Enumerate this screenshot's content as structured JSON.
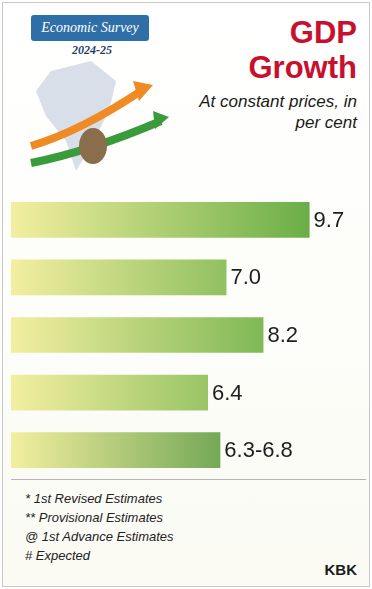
{
  "chart_data": {
    "type": "bar",
    "orientation": "horizontal",
    "title": "GDP Growth",
    "subtitle": "At constant prices, in per cent",
    "categories": [
      null,
      null,
      null,
      null,
      null
    ],
    "values": [
      9.7,
      7.0,
      8.2,
      6.4,
      6.8
    ],
    "value_labels": [
      "9.7",
      "7.0",
      "8.2",
      "6.4",
      "6.3-6.8"
    ],
    "colors": [
      "#6aae48",
      "#6aae48",
      "#6aae48",
      "#6aae48",
      "#3d8a36"
    ],
    "xlim": [
      0,
      11.5
    ],
    "grid": false,
    "tick_labels": false,
    "data_labels": true,
    "annotations": [
      "Economic Survey",
      "2024-25",
      "* 1st Revised Estimates",
      "** Provisional Estimates",
      "@ 1st Advance Estimates",
      "# Expected",
      "KBK"
    ]
  }
}
